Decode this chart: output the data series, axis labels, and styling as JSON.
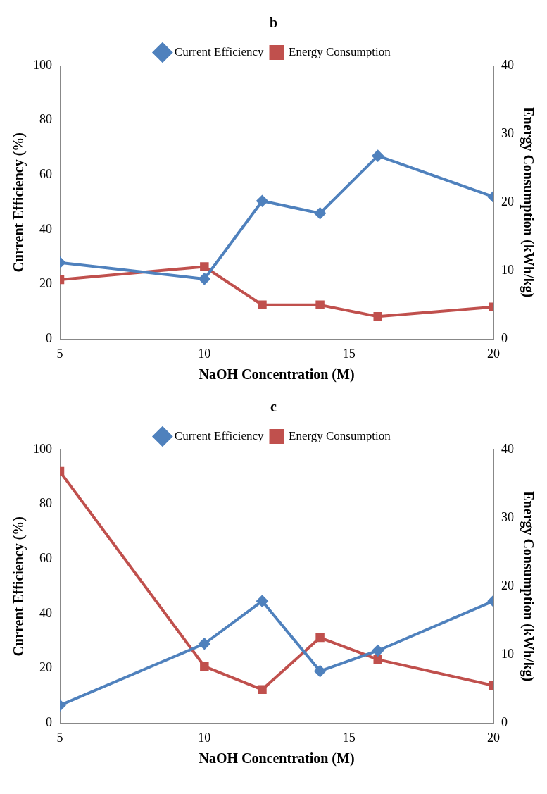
{
  "chart_data": [
    {
      "type": "line",
      "title": "b",
      "xlabel": "NaOH Concentration (M)",
      "ylabel": "Current Efficiency (%)",
      "y2label": "Energy Consumption (kWh/kg)",
      "x": [
        5,
        10,
        12,
        14,
        16,
        20
      ],
      "xlim": [
        5,
        20
      ],
      "xticks": [
        5,
        10,
        15,
        20
      ],
      "ylim": [
        0,
        100
      ],
      "yticks": [
        0,
        20,
        40,
        60,
        80,
        100
      ],
      "y2lim": [
        0,
        40
      ],
      "y2ticks": [
        0,
        10,
        20,
        30,
        40
      ],
      "grid": false,
      "legend": "top",
      "line_style": "solid",
      "series": [
        {
          "name": "Current Efficiency",
          "color": "#4f81bd",
          "marker": "diamond",
          "values": [
            28,
            22,
            50.5,
            46,
            67,
            52
          ]
        },
        {
          "name": "Energy Consumption",
          "color": "#c0504d",
          "marker": "square",
          "axis": "y2",
          "values": [
            8.7,
            10.6,
            5,
            5,
            3.3,
            4.7
          ]
        }
      ]
    },
    {
      "type": "line",
      "title": "c",
      "xlabel": "NaOH Concentration (M)",
      "ylabel": "Current Efficiency (%)",
      "y2label": "Energy Consumption (kWh/kg)",
      "x": [
        5,
        10,
        12,
        14,
        16,
        20
      ],
      "xlim": [
        5,
        20
      ],
      "xticks": [
        5,
        10,
        15,
        20
      ],
      "ylim": [
        0,
        100
      ],
      "yticks": [
        0,
        20,
        40,
        60,
        80,
        100
      ],
      "y2lim": [
        0,
        40
      ],
      "y2ticks": [
        0,
        10,
        20,
        30,
        40
      ],
      "grid": false,
      "legend": "top",
      "line_style": "solid",
      "series": [
        {
          "name": "Current Efficiency",
          "color": "#4f81bd",
          "marker": "diamond",
          "values": [
            6.5,
            29,
            44.6,
            19,
            26.5,
            44.6
          ]
        },
        {
          "name": "Energy Consumption",
          "color": "#c0504d",
          "marker": "square",
          "axis": "y2",
          "values": [
            36.8,
            8.3,
            4.9,
            12.5,
            9.3,
            5.5
          ]
        }
      ]
    }
  ]
}
